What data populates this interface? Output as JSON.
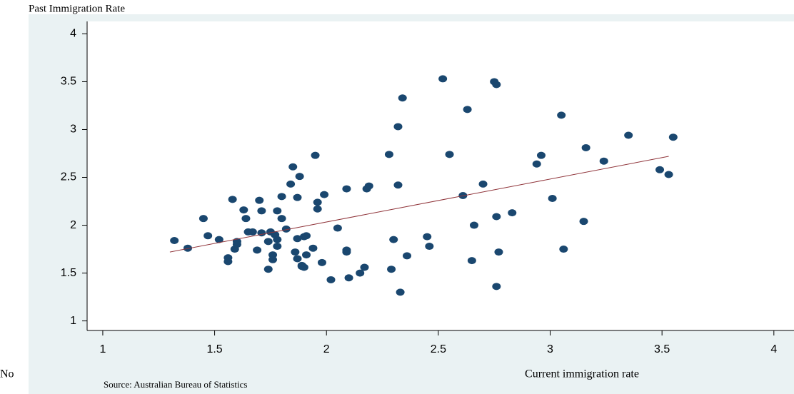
{
  "chart_data": {
    "type": "scatter",
    "y_axis_label": "Past Immigration Rate",
    "x_axis_label": "Current immigration rate",
    "source": "Source: Australian Bureau of Statistics",
    "note": "No",
    "color": "#1a476f",
    "fit_line": {
      "color": "#90353b",
      "x": [
        1.3,
        3.53
      ],
      "y": [
        1.72,
        2.72
      ]
    },
    "xlim": [
      0.93,
      4.09
    ],
    "xticks": [
      1,
      1.5,
      2,
      2.5,
      3,
      3.5,
      4
    ],
    "ylim": [
      0.9,
      4.13
    ],
    "yticks": [
      1,
      1.5,
      2,
      2.5,
      3,
      3.5,
      4
    ],
    "x": [
      1.32,
      1.38,
      1.45,
      1.47,
      1.52,
      1.56,
      1.56,
      1.58,
      1.59,
      1.6,
      1.6,
      1.63,
      1.64,
      1.65,
      1.67,
      1.69,
      1.7,
      1.71,
      1.71,
      1.74,
      1.74,
      1.75,
      1.76,
      1.76,
      1.77,
      1.78,
      1.78,
      1.78,
      1.8,
      1.8,
      1.82,
      1.84,
      1.85,
      1.86,
      1.87,
      1.87,
      1.87,
      1.88,
      1.89,
      1.89,
      1.9,
      1.9,
      1.91,
      1.91,
      1.94,
      1.95,
      1.96,
      1.96,
      1.98,
      1.99,
      2.02,
      2.05,
      2.09,
      2.09,
      2.1,
      2.09,
      2.15,
      2.17,
      2.18,
      2.19,
      2.28,
      2.29,
      2.3,
      2.32,
      2.32,
      2.33,
      2.34,
      2.36,
      2.45,
      2.46,
      2.52,
      2.55,
      2.61,
      2.63,
      2.65,
      2.66,
      2.7,
      2.75,
      2.76,
      2.76,
      2.76,
      2.77,
      2.83,
      2.94,
      2.96,
      3.01,
      3.05,
      3.06,
      3.15,
      3.16,
      3.24,
      3.35,
      3.49,
      3.53,
      3.55
    ],
    "y": [
      1.84,
      1.76,
      2.07,
      1.89,
      1.85,
      1.66,
      1.62,
      2.27,
      1.75,
      1.8,
      1.83,
      2.16,
      2.07,
      1.93,
      1.93,
      1.74,
      2.26,
      2.15,
      1.92,
      1.54,
      1.83,
      1.93,
      1.69,
      1.64,
      1.9,
      1.85,
      1.78,
      2.15,
      2.3,
      2.07,
      1.96,
      2.43,
      2.61,
      1.72,
      1.65,
      1.86,
      2.29,
      2.51,
      1.58,
      1.57,
      1.88,
      1.56,
      1.69,
      1.89,
      1.76,
      2.73,
      2.17,
      2.24,
      1.61,
      2.32,
      1.43,
      1.97,
      1.72,
      1.74,
      1.45,
      2.38,
      1.5,
      1.56,
      2.38,
      2.41,
      2.74,
      1.54,
      1.85,
      3.03,
      2.42,
      1.3,
      3.33,
      1.68,
      1.88,
      1.78,
      3.53,
      2.74,
      2.31,
      3.21,
      1.63,
      2.0,
      2.43,
      3.5,
      3.47,
      2.09,
      1.36,
      1.72,
      2.13,
      2.64,
      2.73,
      2.28,
      3.15,
      1.75,
      2.04,
      2.81,
      2.67,
      2.94,
      2.58,
      2.53,
      2.92
    ]
  }
}
